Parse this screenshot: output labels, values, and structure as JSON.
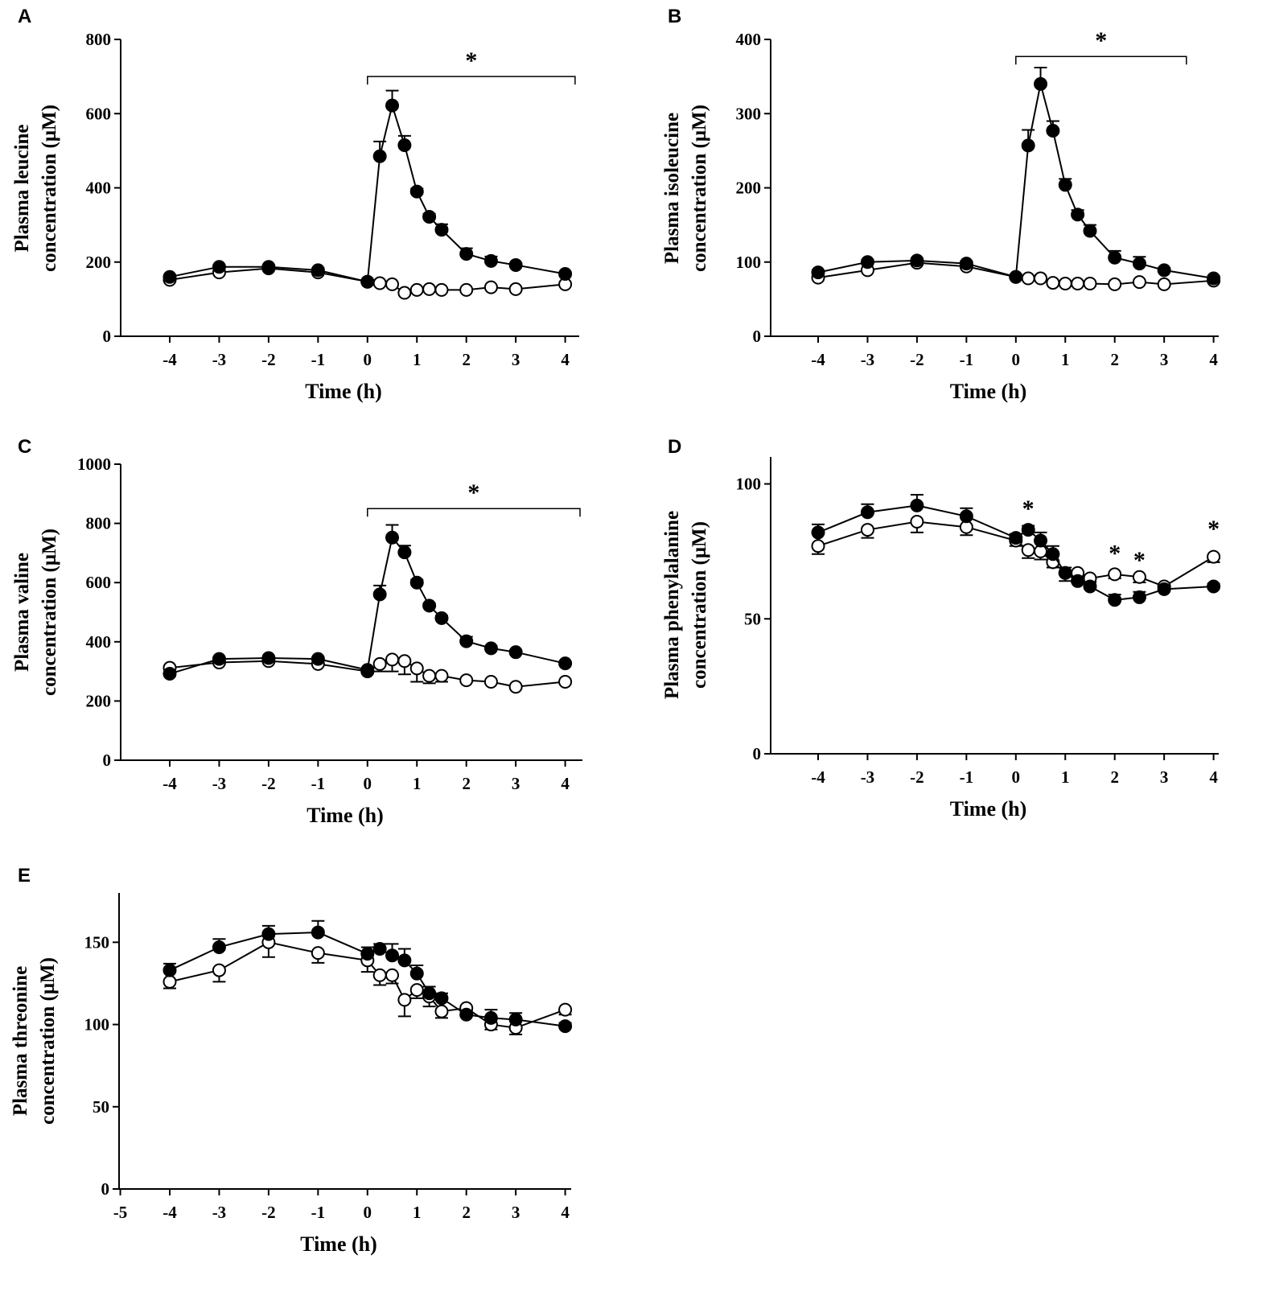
{
  "chart_data": [
    {
      "panel": "A",
      "type": "line",
      "ylabel": [
        "Plasma leucine",
        "concentration (μM)"
      ],
      "xlabel": "Time (h)",
      "ylim": [
        0,
        800
      ],
      "yticks": [
        0,
        200,
        400,
        600,
        800
      ],
      "xticks": [
        -4,
        -3,
        -2,
        -1,
        0,
        1,
        2,
        3,
        4
      ],
      "x": [
        -4,
        -3,
        -2,
        -1,
        0,
        0.25,
        0.5,
        0.75,
        1,
        1.25,
        1.5,
        2,
        2.5,
        3,
        4
      ],
      "series": [
        {
          "name": "filled",
          "marker": "filled-circle",
          "values": [
            160,
            187,
            187,
            178,
            147,
            485,
            622,
            515,
            390,
            322,
            287,
            222,
            203,
            192,
            168
          ],
          "err": [
            5,
            5,
            5,
            5,
            5,
            40,
            40,
            25,
            8,
            8,
            15,
            15,
            12,
            5,
            5
          ]
        },
        {
          "name": "open",
          "marker": "open-circle",
          "values": [
            152,
            172,
            183,
            172,
            147,
            143,
            140,
            117,
            125,
            127,
            125,
            125,
            132,
            127,
            140
          ],
          "err": [
            3,
            3,
            3,
            3,
            3,
            3,
            3,
            3,
            3,
            3,
            3,
            3,
            3,
            3,
            3
          ]
        }
      ],
      "annotations": [
        {
          "type": "bracket",
          "text": "*",
          "x_from": 0,
          "x_to": 4.2,
          "y": 700
        }
      ]
    },
    {
      "panel": "B",
      "type": "line",
      "ylabel": [
        "Plasma isoleucine",
        "concentration (μM)"
      ],
      "xlabel": "Time (h)",
      "ylim": [
        0,
        400
      ],
      "yticks": [
        0,
        100,
        200,
        300,
        400
      ],
      "xticks": [
        -4,
        -3,
        -2,
        -1,
        0,
        1,
        2,
        3,
        4
      ],
      "x": [
        -4,
        -3,
        -2,
        -1,
        0,
        0.25,
        0.5,
        0.75,
        1,
        1.25,
        1.5,
        2,
        2.5,
        3,
        4
      ],
      "series": [
        {
          "name": "filled",
          "marker": "filled-circle",
          "values": [
            86,
            100,
            102,
            98,
            80,
            257,
            340,
            277,
            204,
            164,
            142,
            106,
            98,
            89,
            78
          ],
          "err": [
            3,
            3,
            3,
            3,
            3,
            21,
            22,
            13,
            8,
            6,
            8,
            9,
            9,
            3,
            3
          ]
        },
        {
          "name": "open",
          "marker": "open-circle",
          "values": [
            79,
            89,
            99,
            94,
            80,
            78,
            78,
            72,
            71,
            71,
            71,
            70,
            73,
            70,
            75
          ],
          "err": [
            2,
            2,
            2,
            2,
            2,
            2,
            2,
            2,
            2,
            2,
            2,
            2,
            2,
            2,
            2
          ]
        }
      ],
      "annotations": [
        {
          "type": "bracket",
          "text": "*",
          "x_from": 0,
          "x_to": 3.45,
          "y": 377
        }
      ]
    },
    {
      "panel": "C",
      "type": "line",
      "ylabel": [
        "Plasma valine",
        "concentration (μM)"
      ],
      "xlabel": "Time (h)",
      "ylim": [
        0,
        1000
      ],
      "yticks": [
        0,
        200,
        400,
        600,
        800,
        1000
      ],
      "xticks": [
        -4,
        -3,
        -2,
        -1,
        0,
        1,
        2,
        3,
        4
      ],
      "x": [
        -4,
        -3,
        -2,
        -1,
        0,
        0.25,
        0.5,
        0.75,
        1,
        1.25,
        1.5,
        2,
        2.5,
        3,
        4
      ],
      "series": [
        {
          "name": "filled",
          "marker": "filled-circle",
          "values": [
            292,
            342,
            345,
            342,
            305,
            560,
            752,
            702,
            600,
            522,
            480,
            402,
            378,
            365,
            327
          ],
          "err": [
            5,
            5,
            5,
            5,
            5,
            30,
            43,
            23,
            10,
            8,
            8,
            15,
            8,
            5,
            5
          ]
        },
        {
          "name": "open",
          "marker": "open-circle",
          "values": [
            312,
            330,
            335,
            325,
            300,
            325,
            340,
            335,
            310,
            285,
            285,
            270,
            265,
            248,
            265
          ],
          "err": [
            5,
            5,
            5,
            5,
            5,
            25,
            40,
            45,
            45,
            25,
            20,
            5,
            5,
            5,
            5
          ]
        }
      ],
      "annotations": [
        {
          "type": "bracket",
          "text": "*",
          "x_from": 0,
          "x_to": 4.3,
          "y": 850
        }
      ]
    },
    {
      "panel": "D",
      "type": "line",
      "ylabel": [
        "Plasma phenylalanine",
        "concentration (μM)"
      ],
      "xlabel": "Time (h)",
      "ylim": [
        0,
        110
      ],
      "yticks": [
        0,
        50,
        100
      ],
      "xticks": [
        -4,
        -3,
        -2,
        -1,
        0,
        1,
        2,
        3,
        4
      ],
      "x": [
        -4,
        -3,
        -2,
        -1,
        0,
        0.25,
        0.5,
        0.75,
        1,
        1.25,
        1.5,
        2,
        2.5,
        3,
        4
      ],
      "series": [
        {
          "name": "filled",
          "marker": "filled-circle",
          "values": [
            82,
            89.5,
            92,
            88,
            80,
            83,
            79,
            74,
            67,
            64,
            62,
            57,
            58,
            61,
            62
          ],
          "err": [
            3,
            3,
            4,
            3,
            1.5,
            1.5,
            3,
            3,
            2,
            1.5,
            1.5,
            2,
            2,
            1,
            1
          ]
        },
        {
          "name": "open",
          "marker": "open-circle",
          "values": [
            77,
            83,
            86,
            84,
            79,
            75.5,
            75,
            71,
            67,
            67,
            65,
            66.5,
            65.5,
            62,
            73
          ],
          "err": [
            3,
            3,
            4,
            3,
            2,
            3,
            3,
            2,
            3,
            2,
            1,
            1.5,
            2,
            1,
            2
          ]
        }
      ],
      "annotations": [
        {
          "type": "star",
          "text": "*",
          "x": 0.25,
          "y": 91.5
        },
        {
          "type": "star",
          "text": "*",
          "x": 2,
          "y": 75
        },
        {
          "type": "star",
          "text": "*",
          "x": 2.5,
          "y": 72.5
        },
        {
          "type": "star",
          "text": "*",
          "x": 4,
          "y": 84
        }
      ]
    },
    {
      "panel": "E",
      "type": "line",
      "ylabel": [
        "Plasma threonine",
        "concentration (μM)"
      ],
      "xlabel": "Time (h)",
      "ylim": [
        0,
        180
      ],
      "yticks": [
        0,
        50,
        100,
        150
      ],
      "xticks": [
        -5,
        -4,
        -3,
        -2,
        -1,
        0,
        1,
        2,
        3,
        4
      ],
      "x": [
        -4,
        -3,
        -2,
        -1,
        0,
        0.25,
        0.5,
        0.75,
        1,
        1.25,
        1.5,
        2,
        2.5,
        3,
        4
      ],
      "series": [
        {
          "name": "filled",
          "marker": "filled-circle",
          "values": [
            133,
            147,
            155,
            156,
            143,
            146,
            142,
            139,
            131,
            119,
            116,
            106,
            104,
            103,
            99
          ],
          "err": [
            4,
            5,
            5,
            7,
            4,
            3,
            7,
            7,
            5,
            4,
            3,
            2,
            5,
            4,
            2
          ]
        },
        {
          "name": "open",
          "marker": "open-circle",
          "values": [
            126,
            133,
            150,
            143.5,
            139,
            130,
            130,
            115,
            121,
            117,
            108,
            110,
            100,
            98,
            109
          ],
          "err": [
            4,
            7,
            9,
            6,
            7,
            6,
            5,
            10,
            5,
            6,
            4,
            2,
            3,
            4,
            3
          ]
        }
      ],
      "annotations": []
    }
  ]
}
